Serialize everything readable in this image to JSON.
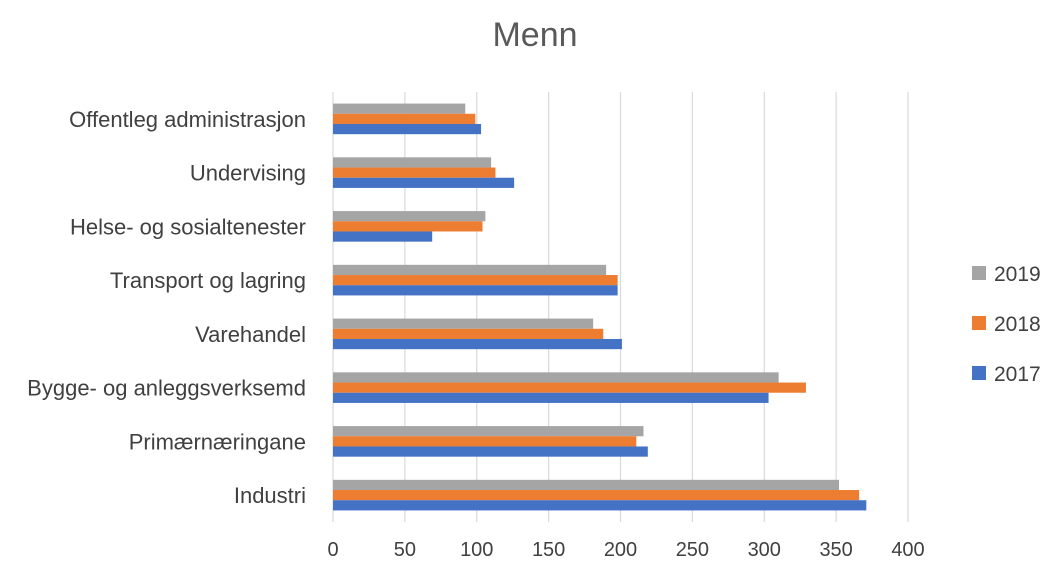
{
  "chart_data": {
    "type": "bar",
    "orientation": "horizontal",
    "title": "Menn",
    "xlabel": "",
    "ylabel": "",
    "categories": [
      "Offentleg administrasjon",
      "Undervising",
      "Helse- og sosialtenester",
      "Transport og lagring",
      "Varehandel",
      "Bygge- og anleggsverksemd",
      "Primærnæringane",
      "Industri"
    ],
    "series": [
      {
        "name": "2019",
        "color": "#a5a5a5",
        "values": [
          92,
          110,
          106,
          190,
          181,
          310,
          216,
          352
        ]
      },
      {
        "name": "2018",
        "color": "#ed7d31",
        "values": [
          99,
          113,
          104,
          198,
          188,
          329,
          211,
          366
        ]
      },
      {
        "name": "2017",
        "color": "#4472c4",
        "values": [
          103,
          126,
          69,
          198,
          201,
          303,
          219,
          371
        ]
      }
    ],
    "xlim": [
      0,
      400
    ],
    "xticks": [
      0,
      50,
      100,
      150,
      200,
      250,
      300,
      350,
      400
    ],
    "grid": true,
    "legend": "right"
  }
}
